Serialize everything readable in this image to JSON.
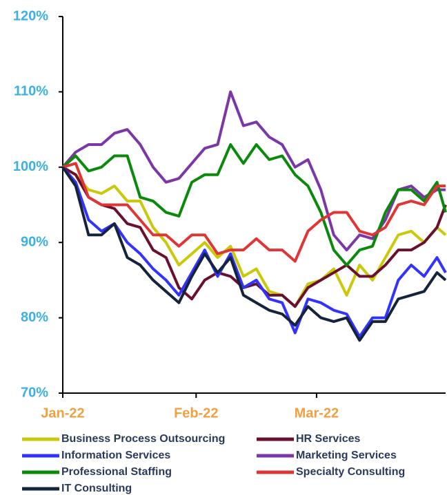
{
  "chart_data": {
    "type": "line",
    "x": [
      0,
      3,
      6,
      9,
      12,
      15,
      18,
      21,
      24,
      27,
      30,
      33,
      36,
      39,
      42,
      45,
      48,
      51,
      54,
      57,
      60,
      63,
      66,
      69,
      72,
      75,
      78,
      81,
      84,
      87,
      89
    ],
    "xlim": [
      0,
      89
    ],
    "xticks": [
      {
        "value": 0,
        "label": "Jan-22"
      },
      {
        "value": 31,
        "label": "Feb-22"
      },
      {
        "value": 59,
        "label": "Mar-22"
      }
    ],
    "ylim": [
      70,
      120
    ],
    "yticks": [
      {
        "value": 70,
        "label": "70%"
      },
      {
        "value": 80,
        "label": "80%"
      },
      {
        "value": 90,
        "label": "90%"
      },
      {
        "value": 100,
        "label": "100%"
      },
      {
        "value": 110,
        "label": "110%"
      },
      {
        "value": 120,
        "label": "120%"
      }
    ],
    "grid": false,
    "legend": "bottom",
    "series": [
      {
        "name": "Business Process Outsourcing",
        "color": "#c9c90a",
        "values": [
          100,
          99,
          97,
          96.5,
          97.5,
          95.5,
          95.5,
          92,
          90,
          87,
          88.5,
          90,
          88,
          89.5,
          85.5,
          86.5,
          83.5,
          83,
          81.5,
          84.5,
          85,
          86.5,
          83,
          87,
          85,
          88,
          91,
          91.5,
          90,
          92,
          91
        ]
      },
      {
        "name": "HR Services",
        "color": "#6b0f2e",
        "values": [
          100,
          99,
          96,
          95,
          94.5,
          92.5,
          92,
          89,
          88,
          84,
          82.5,
          85,
          86,
          85.5,
          84,
          84.5,
          83,
          83,
          81.5,
          84,
          85,
          86,
          87,
          85.5,
          85.5,
          87,
          89,
          89,
          90,
          92,
          95
        ]
      },
      {
        "name": "Information Services",
        "color": "#3333ff",
        "values": [
          100,
          98,
          93,
          91.5,
          92.5,
          90,
          88.5,
          86.5,
          85,
          83,
          86,
          89,
          85.5,
          88.5,
          84,
          85,
          82.5,
          82,
          78,
          82.5,
          82,
          81,
          80.5,
          77.5,
          80,
          80,
          85,
          87,
          85.5,
          88,
          86
        ]
      },
      {
        "name": "Marketing Services",
        "color": "#7b36a8",
        "values": [
          100,
          102,
          103,
          103,
          104.5,
          105,
          103,
          100,
          98,
          98.5,
          100.5,
          102.5,
          103,
          110,
          105.5,
          106,
          104,
          103,
          100,
          101,
          97,
          91,
          89,
          91,
          90.5,
          93,
          97,
          97.5,
          96,
          97,
          97
        ]
      },
      {
        "name": "Professional Staffing",
        "color": "#0a8a0a",
        "values": [
          100,
          101.5,
          99.5,
          100,
          101.5,
          101.5,
          96,
          95.5,
          94,
          93.5,
          98,
          99,
          99,
          103,
          100.5,
          103,
          101,
          101.5,
          99,
          97.5,
          94,
          89,
          87,
          89,
          89.5,
          94,
          97,
          97,
          95.5,
          98,
          94
        ]
      },
      {
        "name": "Specialty Consulting",
        "color": "#e03535",
        "values": [
          100,
          100.5,
          96,
          95,
          95,
          95,
          93,
          91,
          91,
          89.5,
          91,
          91,
          88.5,
          89,
          89,
          90.5,
          89,
          89,
          87.5,
          91.5,
          93,
          94,
          94,
          91.5,
          91,
          92,
          95,
          95.5,
          95,
          97.5,
          97.5
        ]
      },
      {
        "name": "IT Consulting",
        "color": "#15233d",
        "values": [
          100,
          97.5,
          91,
          91,
          92.5,
          88,
          87,
          85,
          83.5,
          82,
          85.5,
          88.5,
          86,
          88,
          83,
          82,
          81,
          80.5,
          79,
          81.5,
          80,
          79.5,
          80,
          77,
          79.5,
          79.5,
          82.5,
          83,
          83.5,
          86,
          85
        ]
      }
    ]
  }
}
